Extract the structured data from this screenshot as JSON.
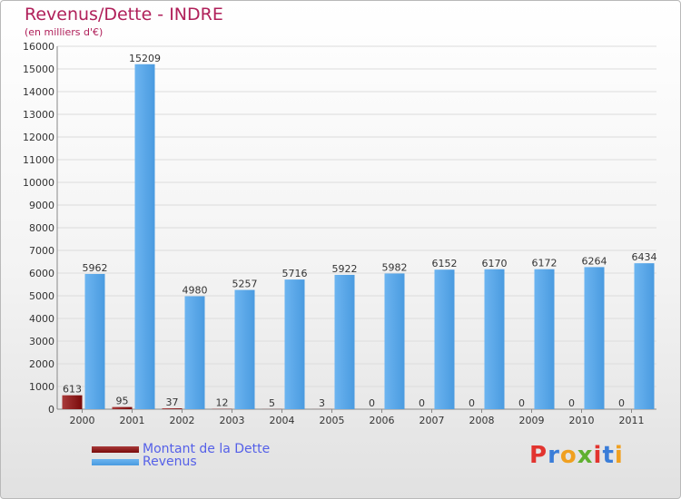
{
  "header": {
    "title": "Revenus/Dette - INDRE",
    "subtitle": "(en milliers d'€)"
  },
  "legend": {
    "debt_label": "Montant de la Dette",
    "revenue_label": "Revenus"
  },
  "logo": {
    "text": "Proxiti",
    "colors": [
      "#e2342f",
      "#3a7dd8",
      "#f0a020",
      "#5fb030",
      "#e2342f",
      "#3a7dd8",
      "#f0a020"
    ]
  },
  "colors": {
    "debt": "#7a0a0a",
    "debt_light": "#a83a3a",
    "revenue": "#4a9be0",
    "revenue_light": "#6cb4f0",
    "grid": "#dcdcdc",
    "axis": "#888888"
  },
  "chart_data": {
    "type": "bar",
    "title": "Revenus/Dette - INDRE",
    "subtitle": "(en milliers d'€)",
    "categories": [
      "2000",
      "2001",
      "2002",
      "2003",
      "2004",
      "2005",
      "2006",
      "2007",
      "2008",
      "2009",
      "2010",
      "2011"
    ],
    "series": [
      {
        "name": "Montant de la Dette",
        "values": [
          613,
          95,
          37,
          12,
          5,
          3,
          0,
          0,
          0,
          0,
          0,
          0
        ]
      },
      {
        "name": "Revenus",
        "values": [
          5962,
          15209,
          4980,
          5257,
          5716,
          5922,
          5982,
          6152,
          6170,
          6172,
          6264,
          6434
        ]
      }
    ],
    "ylim": [
      0,
      16000
    ],
    "yticks": [
      0,
      1000,
      2000,
      3000,
      4000,
      5000,
      6000,
      7000,
      8000,
      9000,
      10000,
      11000,
      12000,
      13000,
      14000,
      15000,
      16000
    ],
    "grid": true,
    "xlabel": "",
    "ylabel": "",
    "legend_position": "bottom-left"
  }
}
